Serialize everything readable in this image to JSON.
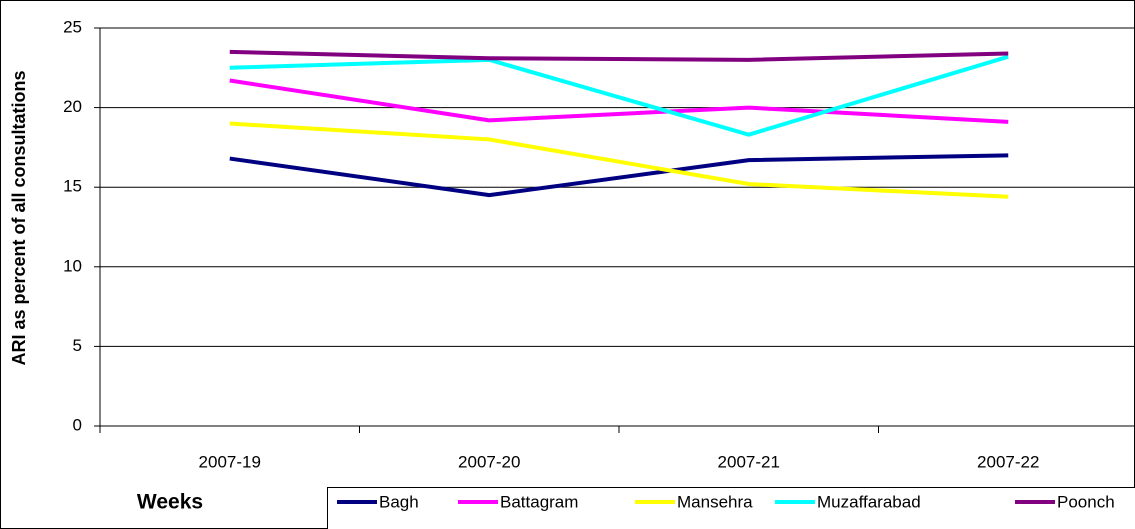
{
  "chart_data": {
    "type": "line",
    "y_label": "ARI as percent of all consultations",
    "x_label": "Weeks",
    "categories": [
      "2007-19",
      "2007-20",
      "2007-21",
      "2007-22"
    ],
    "series": [
      {
        "name": "Bagh",
        "color": "#000080",
        "values": [
          16.8,
          14.5,
          16.7,
          17.0
        ]
      },
      {
        "name": "Battagram",
        "color": "#ff00ff",
        "values": [
          21.7,
          19.2,
          20.0,
          19.1
        ]
      },
      {
        "name": "Mansehra",
        "color": "#ffff00",
        "values": [
          19.0,
          18.0,
          15.2,
          14.4
        ]
      },
      {
        "name": "Muzaffarabad",
        "color": "#00ffff",
        "values": [
          22.5,
          23.0,
          18.3,
          23.2
        ]
      },
      {
        "name": "Poonch",
        "color": "#800080",
        "values": [
          23.5,
          23.1,
          23.0,
          23.4
        ]
      }
    ],
    "ylim": [
      0,
      25
    ],
    "yticks": [
      0,
      5,
      10,
      15,
      20,
      25
    ],
    "grid": true
  }
}
